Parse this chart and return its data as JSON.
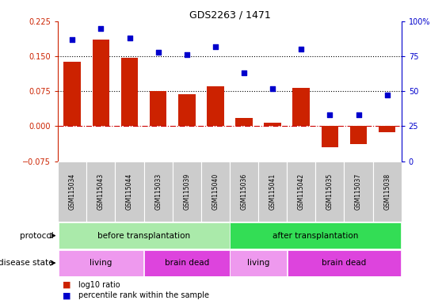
{
  "title": "GDS2263 / 1471",
  "samples": [
    "GSM115034",
    "GSM115043",
    "GSM115044",
    "GSM115033",
    "GSM115039",
    "GSM115040",
    "GSM115036",
    "GSM115041",
    "GSM115042",
    "GSM115035",
    "GSM115037",
    "GSM115038"
  ],
  "log10_ratio": [
    0.138,
    0.185,
    0.147,
    0.075,
    0.068,
    0.085,
    0.018,
    0.007,
    0.082,
    -0.045,
    -0.038,
    -0.013
  ],
  "percentile_rank": [
    87,
    95,
    88,
    78,
    76,
    82,
    63,
    52,
    80,
    33,
    33,
    47
  ],
  "bar_color": "#cc2200",
  "dot_color": "#0000cc",
  "left_ylim": [
    -0.075,
    0.225
  ],
  "right_ylim": [
    0,
    100
  ],
  "left_yticks": [
    -0.075,
    0,
    0.075,
    0.15,
    0.225
  ],
  "right_yticks": [
    0,
    25,
    50,
    75,
    100
  ],
  "hline_values": [
    0.075,
    0.15
  ],
  "protocol_groups": [
    {
      "label": "before transplantation",
      "start": 0,
      "end": 6,
      "color": "#aaeaaa"
    },
    {
      "label": "after transplantation",
      "start": 6,
      "end": 12,
      "color": "#33dd55"
    }
  ],
  "disease_groups": [
    {
      "label": "living",
      "start": 0,
      "end": 3,
      "color": "#ee99ee"
    },
    {
      "label": "brain dead",
      "start": 3,
      "end": 6,
      "color": "#dd44dd"
    },
    {
      "label": "living",
      "start": 6,
      "end": 8,
      "color": "#ee99ee"
    },
    {
      "label": "brain dead",
      "start": 8,
      "end": 12,
      "color": "#dd44dd"
    }
  ],
  "legend_items": [
    {
      "label": "log10 ratio",
      "color": "#cc2200"
    },
    {
      "label": "percentile rank within the sample",
      "color": "#0000cc"
    }
  ],
  "protocol_label": "protocol",
  "disease_label": "disease state",
  "sample_bg_color": "#cccccc",
  "bar_width": 0.6,
  "dotted_line_color": "#000000",
  "zero_line_color": "#cc0000",
  "right_ytick_labels": [
    "0",
    "25",
    "50",
    "75",
    "100%"
  ]
}
